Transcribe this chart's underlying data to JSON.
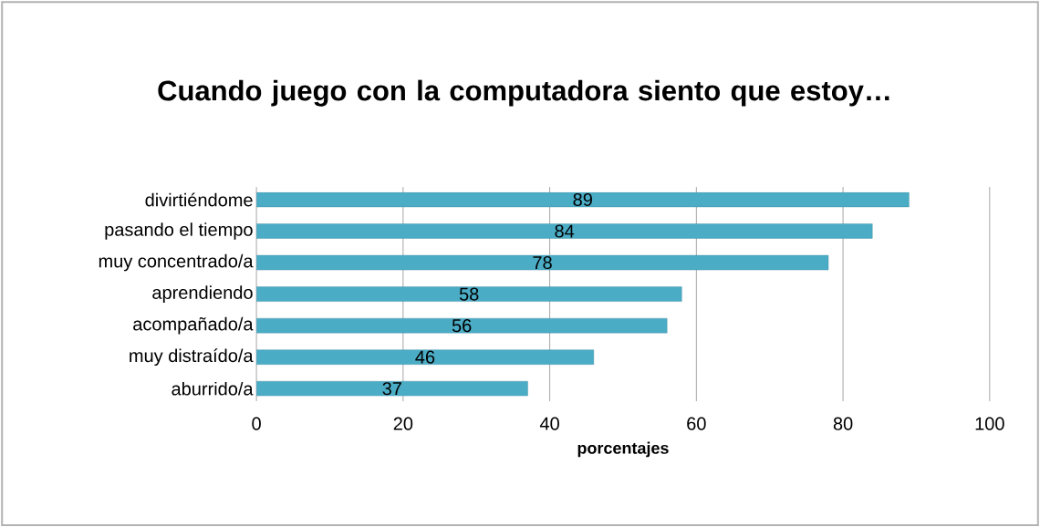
{
  "chart_data": {
    "type": "bar",
    "orientation": "horizontal",
    "title": "Cuando juego con la computadora siento que estoy…",
    "xlabel": "porcentajes",
    "categories": [
      "divirtiéndome",
      "pasando el tiempo",
      "muy concentrado/a",
      "aprendiendo",
      "acompañado/a",
      "muy distraído/a",
      "aburrido/a"
    ],
    "values": [
      89,
      84,
      78,
      58,
      56,
      46,
      37
    ],
    "color": "#4bacc6",
    "xlim": [
      0,
      100
    ],
    "xticks": [
      0,
      20,
      40,
      60,
      80,
      100
    ],
    "grid": "x",
    "data_labels": true
  }
}
